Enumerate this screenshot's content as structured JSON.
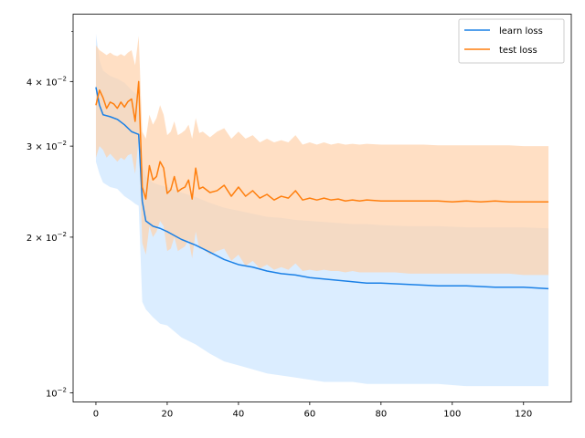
{
  "chart_data": {
    "type": "line",
    "yscale": "log",
    "xlim": [
      -6.4,
      133.4
    ],
    "ylim": [
      0.0096,
      0.054
    ],
    "xticks": [
      0,
      20,
      40,
      60,
      80,
      100,
      120
    ],
    "xtick_labels": [
      "0",
      "20",
      "40",
      "60",
      "80",
      "100",
      "120"
    ],
    "yticks": [
      0.01,
      0.02,
      0.03,
      0.04
    ],
    "ytick_labels": [
      {
        "base": "10",
        "exp": "−2"
      },
      {
        "mant": "2",
        "base": "10",
        "exp": "−2"
      },
      {
        "mant": "3",
        "base": "10",
        "exp": "−2"
      },
      {
        "mant": "4",
        "base": "10",
        "exp": "−2"
      }
    ],
    "yticks_minor": [
      0.05
    ],
    "legend": {
      "placement": "top-right"
    },
    "series": [
      {
        "name": "learn loss",
        "color": "#1a80e6",
        "band_color": "#cce5ff",
        "x": [
          0,
          1,
          2,
          4,
          6,
          8,
          10,
          11,
          12,
          13,
          14,
          16,
          18,
          20,
          24,
          28,
          32,
          36,
          40,
          44,
          48,
          52,
          56,
          60,
          64,
          68,
          72,
          76,
          80,
          88,
          96,
          104,
          112,
          120,
          127
        ],
        "y": [
          0.039,
          0.036,
          0.0345,
          0.0342,
          0.0338,
          0.033,
          0.032,
          0.0318,
          0.0316,
          0.0235,
          0.0215,
          0.021,
          0.0208,
          0.0205,
          0.0198,
          0.0193,
          0.0187,
          0.0181,
          0.0177,
          0.0175,
          0.0172,
          0.017,
          0.0169,
          0.0167,
          0.0166,
          0.0165,
          0.0164,
          0.0163,
          0.0163,
          0.0162,
          0.0161,
          0.0161,
          0.016,
          0.016,
          0.0159
        ],
        "upper": [
          0.0495,
          0.044,
          0.042,
          0.041,
          0.0405,
          0.0398,
          0.0385,
          0.038,
          0.0375,
          0.0275,
          0.0262,
          0.0255,
          0.0252,
          0.025,
          0.0244,
          0.0239,
          0.0233,
          0.0228,
          0.0225,
          0.0222,
          0.0219,
          0.0218,
          0.0216,
          0.0215,
          0.0214,
          0.0213,
          0.0212,
          0.0212,
          0.0211,
          0.021,
          0.021,
          0.0209,
          0.0209,
          0.0209,
          0.0208
        ],
        "lower": [
          0.028,
          0.0265,
          0.0255,
          0.025,
          0.0248,
          0.024,
          0.0235,
          0.0232,
          0.023,
          0.015,
          0.0145,
          0.014,
          0.0136,
          0.0135,
          0.0128,
          0.0124,
          0.0119,
          0.0115,
          0.0113,
          0.0111,
          0.0109,
          0.0108,
          0.0107,
          0.0106,
          0.0105,
          0.0105,
          0.0105,
          0.0104,
          0.0104,
          0.0104,
          0.0104,
          0.0103,
          0.0103,
          0.0103,
          0.0103
        ]
      },
      {
        "name": "test loss",
        "color": "#ff7f0e",
        "band_color": "#ffd2ab",
        "x": [
          0,
          1,
          2,
          3,
          4,
          5,
          6,
          7,
          8,
          9,
          10,
          11,
          12,
          13,
          14,
          15,
          16,
          17,
          18,
          19,
          20,
          21,
          22,
          23,
          24,
          25,
          26,
          27,
          28,
          29,
          30,
          32,
          34,
          36,
          38,
          40,
          42,
          44,
          46,
          48,
          50,
          52,
          54,
          56,
          58,
          60,
          62,
          64,
          66,
          68,
          70,
          72,
          74,
          76,
          80,
          84,
          88,
          92,
          96,
          100,
          104,
          108,
          112,
          116,
          120,
          124,
          127
        ],
        "y": [
          0.036,
          0.0385,
          0.0372,
          0.0355,
          0.0365,
          0.0362,
          0.0355,
          0.0365,
          0.0357,
          0.0366,
          0.037,
          0.0335,
          0.04,
          0.025,
          0.0237,
          0.0275,
          0.0258,
          0.0262,
          0.028,
          0.0272,
          0.0243,
          0.0247,
          0.0262,
          0.0245,
          0.0248,
          0.025,
          0.0258,
          0.0237,
          0.0272,
          0.0248,
          0.025,
          0.0244,
          0.0246,
          0.0252,
          0.024,
          0.025,
          0.024,
          0.0246,
          0.0238,
          0.0242,
          0.0236,
          0.024,
          0.0238,
          0.0246,
          0.0236,
          0.0238,
          0.0236,
          0.0238,
          0.0236,
          0.0237,
          0.0235,
          0.0236,
          0.0235,
          0.0236,
          0.0235,
          0.0235,
          0.0235,
          0.0235,
          0.0235,
          0.0234,
          0.0235,
          0.0234,
          0.0235,
          0.0234,
          0.0234,
          0.0234,
          0.0234
        ],
        "upper": [
          0.047,
          0.046,
          0.0455,
          0.045,
          0.0455,
          0.045,
          0.0448,
          0.0452,
          0.0448,
          0.0455,
          0.046,
          0.043,
          0.049,
          0.032,
          0.031,
          0.0345,
          0.033,
          0.034,
          0.036,
          0.0345,
          0.0315,
          0.032,
          0.0335,
          0.0315,
          0.0318,
          0.0322,
          0.033,
          0.031,
          0.034,
          0.0318,
          0.032,
          0.0312,
          0.032,
          0.0325,
          0.031,
          0.032,
          0.031,
          0.0315,
          0.0305,
          0.031,
          0.0305,
          0.0308,
          0.0305,
          0.0315,
          0.0302,
          0.0305,
          0.0302,
          0.0305,
          0.0302,
          0.0304,
          0.0302,
          0.0303,
          0.0302,
          0.0303,
          0.0302,
          0.0302,
          0.0302,
          0.0302,
          0.0301,
          0.0301,
          0.0301,
          0.0301,
          0.0301,
          0.0301,
          0.03,
          0.03,
          0.03
        ],
        "lower": [
          0.0285,
          0.03,
          0.0295,
          0.0285,
          0.029,
          0.0285,
          0.028,
          0.0285,
          0.0282,
          0.0288,
          0.029,
          0.0265,
          0.031,
          0.0195,
          0.0185,
          0.021,
          0.02,
          0.0205,
          0.0215,
          0.021,
          0.0188,
          0.019,
          0.02,
          0.0188,
          0.019,
          0.0192,
          0.0198,
          0.0182,
          0.0205,
          0.019,
          0.019,
          0.0185,
          0.0188,
          0.019,
          0.018,
          0.0185,
          0.0176,
          0.018,
          0.0174,
          0.0177,
          0.0173,
          0.0175,
          0.0173,
          0.0178,
          0.0172,
          0.0173,
          0.0172,
          0.0173,
          0.0172,
          0.0172,
          0.0171,
          0.0172,
          0.0171,
          0.0171,
          0.0171,
          0.0171,
          0.017,
          0.017,
          0.017,
          0.017,
          0.017,
          0.017,
          0.017,
          0.017,
          0.0169,
          0.0169,
          0.0169
        ]
      }
    ]
  }
}
